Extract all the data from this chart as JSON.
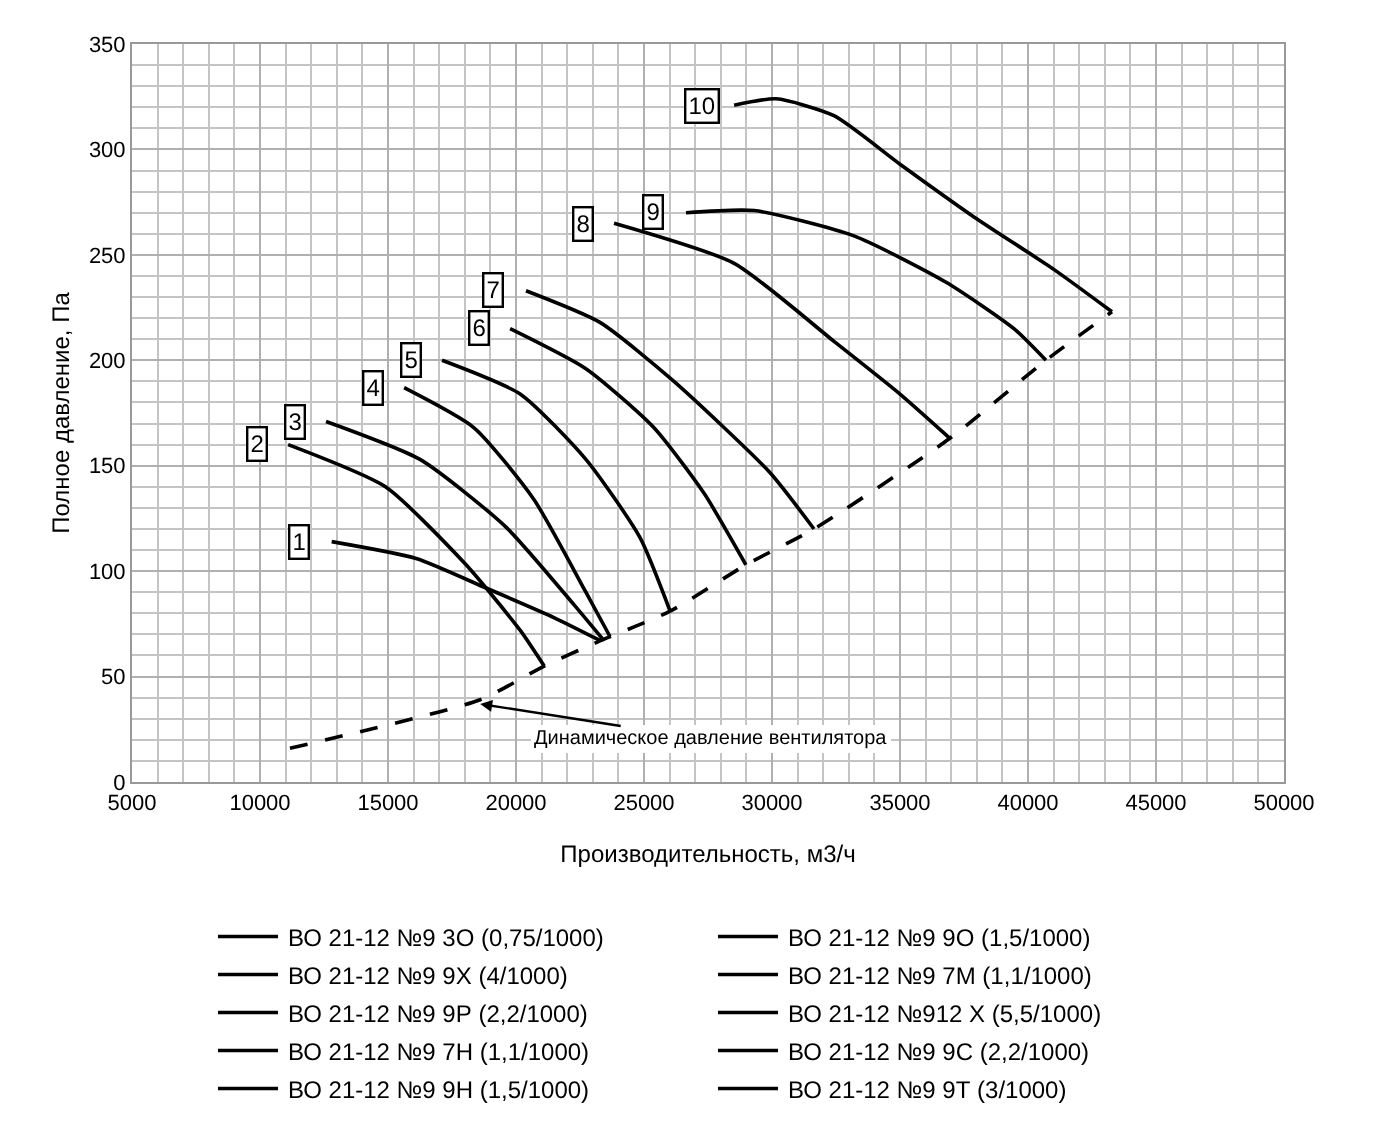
{
  "chart_data": {
    "type": "line",
    "xlabel": "Производительность, м3/ч",
    "ylabel": "Полное давление, Па",
    "xlim": [
      5000,
      50000
    ],
    "xticks": [
      5000,
      10000,
      15000,
      20000,
      25000,
      30000,
      35000,
      40000,
      45000,
      50000
    ],
    "ylim": [
      0,
      350
    ],
    "yticks": [
      0,
      50,
      100,
      150,
      200,
      250,
      300,
      350
    ],
    "grid": true,
    "legend": "bottom",
    "marker": "none",
    "line_style": "solid",
    "series": [
      {
        "name": "ВО 21-12 №9 3О (0,75/1000)",
        "color": "#000000",
        "x": [
          12800,
          16100,
          18830,
          21480,
          23300
        ],
        "values": [
          114,
          106,
          92,
          78,
          67
        ]
      },
      {
        "name": "ВО 21-12 №9 7М (1,1/1000)",
        "color": "#000000",
        "x": [
          11100,
          14900,
          18050,
          20160,
          21100
        ],
        "values": [
          160,
          140,
          103,
          72,
          55
        ]
      },
      {
        "name": "ВО 21-12 №9 7Н (1,1/1000)",
        "color": "#000000",
        "x": [
          12580,
          16250,
          19600,
          22270,
          23440
        ],
        "values": [
          171,
          153,
          121,
          84,
          67
        ]
      },
      {
        "name": "ВО 21-12 №9 9Н (1,5/1000)",
        "color": "#000000",
        "x": [
          15630,
          18360,
          20700,
          22730,
          23670
        ],
        "values": [
          187,
          168,
          134,
          90,
          69
        ]
      },
      {
        "name": "ВО 21-12 №9 9О (1,5/1000)",
        "color": "#000000",
        "x": [
          17110,
          20160,
          22730,
          24840,
          26020
        ],
        "values": [
          200,
          184,
          153,
          116,
          81
        ]
      },
      {
        "name": "ВО 21-12 №9 9Р (2,2/1000)",
        "color": "#000000",
        "x": [
          19770,
          22730,
          25390,
          27340,
          28980
        ],
        "values": [
          215,
          196,
          168,
          137,
          103
        ]
      },
      {
        "name": "ВО 21-12 №9 9С (2,2/1000)",
        "color": "#000000",
        "x": [
          20390,
          23280,
          26170,
          29900,
          31640
        ],
        "values": [
          233,
          218,
          190,
          147,
          120
        ]
      },
      {
        "name": "ВО 21-12 №9 9Т (3/1000)",
        "color": "#000000",
        "x": [
          23830,
          28520,
          32420,
          35000,
          36950
        ],
        "values": [
          265,
          246,
          209,
          184,
          163
        ]
      },
      {
        "name": "ВО 21-12 №9 9Х (4/1000)",
        "color": "#000000",
        "x": [
          26640,
          29300,
          33200,
          36800,
          39450,
          40700
        ],
        "values": [
          270,
          271,
          259,
          237,
          215,
          200
        ]
      },
      {
        "name": "ВО 21-12 №912 Х (5,5/1000)",
        "color": "#000000",
        "x": [
          28520,
          30160,
          32420,
          35000,
          37890,
          41020,
          43280
        ],
        "values": [
          321,
          324,
          316,
          293,
          268,
          243,
          223
        ]
      },
      {
        "color": "#000000",
        "line_style": "dashed",
        "x": [
          11170,
          18600,
          21100,
          23300,
          26020,
          28980,
          31640,
          36950,
          40700,
          43280
        ],
        "values": [
          16,
          39,
          55,
          67,
          81,
          103,
          120,
          163,
          200,
          223
        ]
      }
    ],
    "annotations": [
      {
        "text": "1",
        "x": 12800,
        "y": 114
      },
      {
        "text": "2",
        "x": 11100,
        "y": 160
      },
      {
        "text": "3",
        "x": 12580,
        "y": 171
      },
      {
        "text": "4",
        "x": 15630,
        "y": 187
      },
      {
        "text": "5",
        "x": 17110,
        "y": 200
      },
      {
        "text": "6",
        "x": 19770,
        "y": 215
      },
      {
        "text": "7",
        "x": 20390,
        "y": 233
      },
      {
        "text": "8",
        "x": 23830,
        "y": 265
      },
      {
        "text": "9",
        "x": 26640,
        "y": 270
      },
      {
        "text": "10",
        "x": 28520,
        "y": 321
      },
      {
        "text": "Динамическое давление вентилятора",
        "x": 18600,
        "y": 37
      }
    ]
  }
}
